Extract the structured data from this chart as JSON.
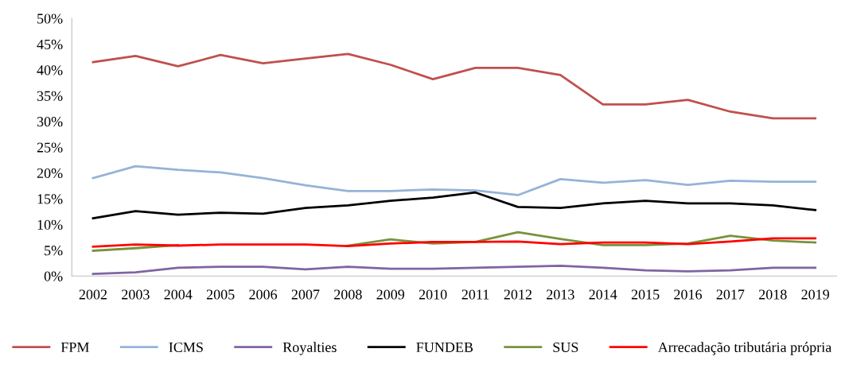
{
  "chart_data": {
    "type": "line",
    "categories": [
      "2002",
      "2003",
      "2004",
      "2005",
      "2006",
      "2007",
      "2008",
      "2009",
      "2010",
      "2011",
      "2012",
      "2013",
      "2014",
      "2015",
      "2016",
      "2017",
      "2018",
      "2019"
    ],
    "series": [
      {
        "name": "FPM",
        "color": "#c0504d",
        "values": [
          41.5,
          42.7,
          40.7,
          42.9,
          41.3,
          42.2,
          43.1,
          41.0,
          38.2,
          40.4,
          40.4,
          39.0,
          33.3,
          33.3,
          34.2,
          31.9,
          30.6,
          30.6
        ]
      },
      {
        "name": "ICMS",
        "color": "#95b3d7",
        "values": [
          19.0,
          21.3,
          20.6,
          20.1,
          19.0,
          17.6,
          16.5,
          16.5,
          16.8,
          16.6,
          15.7,
          18.8,
          18.1,
          18.6,
          17.7,
          18.5,
          18.3,
          18.3
        ]
      },
      {
        "name": "Royalties",
        "color": "#8064a2",
        "values": [
          0.4,
          0.7,
          1.6,
          1.8,
          1.8,
          1.3,
          1.8,
          1.4,
          1.4,
          1.6,
          1.8,
          2.0,
          1.6,
          1.1,
          0.9,
          1.1,
          1.6,
          1.6
        ]
      },
      {
        "name": "FUNDEB",
        "color": "#000000",
        "values": [
          11.2,
          12.6,
          11.9,
          12.3,
          12.1,
          13.2,
          13.7,
          14.6,
          15.2,
          16.2,
          13.4,
          13.2,
          14.1,
          14.6,
          14.1,
          14.1,
          13.7,
          12.8
        ]
      },
      {
        "name": "SUS",
        "color": "#77933c",
        "values": [
          4.9,
          5.4,
          6.0,
          null,
          null,
          null,
          5.9,
          7.1,
          6.3,
          6.6,
          8.5,
          7.2,
          6.0,
          6.0,
          6.3,
          7.8,
          6.9,
          6.5
        ]
      },
      {
        "name": "Arrecadação tributária própria",
        "color": "#ff0000",
        "values": [
          5.7,
          6.1,
          5.9,
          6.1,
          6.1,
          6.1,
          5.8,
          6.3,
          6.6,
          6.6,
          6.7,
          6.2,
          6.5,
          6.5,
          6.2,
          6.7,
          7.3,
          7.3
        ]
      }
    ],
    "ylim": [
      0,
      50
    ],
    "yticks": [
      {
        "value": 0,
        "label": "0%"
      },
      {
        "value": 5,
        "label": "5%"
      },
      {
        "value": 10,
        "label": "10%"
      },
      {
        "value": 15,
        "label": "15%"
      },
      {
        "value": 20,
        "label": "20%"
      },
      {
        "value": 25,
        "label": "25%"
      },
      {
        "value": 30,
        "label": "30%"
      },
      {
        "value": 35,
        "label": "35%"
      },
      {
        "value": 40,
        "label": "40%"
      },
      {
        "value": 45,
        "label": "45%"
      },
      {
        "value": 50,
        "label": "50%"
      }
    ],
    "grid": false,
    "legend": "bottom",
    "marker": "none",
    "line_style": "solid"
  }
}
